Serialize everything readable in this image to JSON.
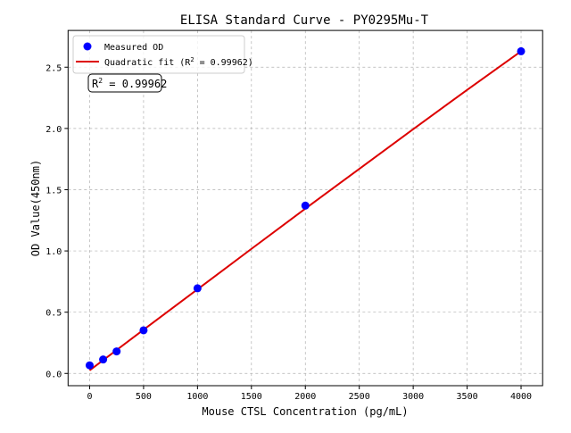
{
  "chart_data": {
    "type": "scatter",
    "title": "ELISA Standard Curve - PY0295Mu-T",
    "xlabel": "Mouse CTSL Concentration (pg/mL)",
    "ylabel": "OD Value(450nm)",
    "xlim": [
      -200,
      4200
    ],
    "ylim": [
      -0.1,
      2.8
    ],
    "xticks": [
      0,
      500,
      1000,
      1500,
      2000,
      2500,
      3000,
      3500,
      4000
    ],
    "yticks": [
      0.0,
      0.5,
      1.0,
      1.5,
      2.0,
      2.5
    ],
    "xtick_labels": [
      "0",
      "500",
      "1000",
      "1500",
      "2000",
      "2500",
      "3000",
      "3500",
      "4000"
    ],
    "ytick_labels": [
      "0.0",
      "0.5",
      "1.0",
      "1.5",
      "2.0",
      "2.5"
    ],
    "grid": true,
    "legend_placement": "top-left",
    "series": [
      {
        "name": "Measured OD",
        "kind": "scatter",
        "color": "#0000ff",
        "x": [
          0,
          125,
          250,
          500,
          1000,
          2000,
          4000
        ],
        "y": [
          0.066,
          0.114,
          0.18,
          0.352,
          0.695,
          1.37,
          2.63
        ]
      },
      {
        "name": "Quadratic fit (R² = 0.99962)",
        "name_prefix": "Quadratic fit (R",
        "name_suffix": " = 0.99962)",
        "kind": "line",
        "color": "#dd0000",
        "x": [
          0,
          500,
          1000,
          1500,
          2000,
          2500,
          3000,
          3500,
          4000
        ],
        "y": [
          0.025,
          0.357,
          0.687,
          1.017,
          1.345,
          1.67,
          1.994,
          2.315,
          2.63
        ]
      }
    ],
    "annotation": {
      "prefix": "R",
      "sup": "2",
      "value": " = 0.99962"
    }
  }
}
